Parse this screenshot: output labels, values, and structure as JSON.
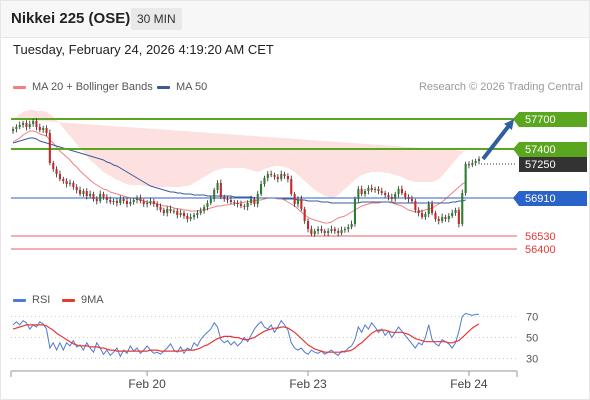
{
  "header": {
    "instrument": "Nikkei 225 (OSE)",
    "interval": "30 MIN",
    "datetime": "Tuesday, February 24, 2026 4:19:20 AM CET"
  },
  "legend": {
    "ma20_label": "MA 20 + Bollinger Bands",
    "ma50_label": "MA 50",
    "copyright": "Research © 2026 Trading Central",
    "rsi_label": "RSI",
    "rsi_ma_label": "9MA"
  },
  "colors": {
    "up": "#2e7d32",
    "down": "#c62828",
    "ma20": "#f08080",
    "ma50": "#3a5a9a",
    "bollinger_fill": "#fde0e0",
    "resistance": "#5aa61e",
    "support": "#2962c9",
    "pivot": "#333333",
    "target_low": "#e53935",
    "arrow": "#2f5f9f",
    "rsi": "#4f79d6",
    "rsi_ma": "#e53935"
  },
  "chart_data": [
    {
      "type": "candlestick",
      "ylim": [
        56100,
        57900
      ],
      "x_ticks": [
        "Feb 20",
        "Feb 23",
        "Feb 24"
      ],
      "levels": [
        {
          "value": 57700,
          "label": "57700",
          "kind": "resistance"
        },
        {
          "value": 57400,
          "label": "57400",
          "kind": "resistance"
        },
        {
          "value": 57250,
          "label": "57250",
          "kind": "pivot"
        },
        {
          "value": 56910,
          "label": "56910",
          "kind": "support"
        },
        {
          "value": 56530,
          "label": "56530",
          "kind": "target"
        },
        {
          "value": 56400,
          "label": "56400",
          "kind": "target"
        }
      ],
      "close": [
        57600,
        57620,
        57640,
        57660,
        57620,
        57650,
        57680,
        57620,
        57590,
        57610,
        57560,
        57260,
        57200,
        57150,
        57100,
        57080,
        57050,
        57060,
        57020,
        56990,
        56950,
        56980,
        56930,
        56950,
        56900,
        56880,
        56950,
        56920,
        56890,
        56870,
        56880,
        56860,
        56900,
        56880,
        56850,
        56870,
        56890,
        56910,
        56880,
        56850,
        56860,
        56880,
        56850,
        56820,
        56790,
        56760,
        56800,
        56780,
        56780,
        56740,
        56760,
        56730,
        56700,
        56720,
        56740,
        56760,
        56780,
        56820,
        56860,
        56900,
        56990,
        57060,
        56920,
        56900,
        56890,
        56870,
        56860,
        56850,
        56830,
        56820,
        56860,
        56900,
        56850,
        56950,
        57050,
        57110,
        57150,
        57140,
        57120,
        57100,
        57150,
        57130,
        57100,
        56950,
        56850,
        56900,
        56800,
        56680,
        56600,
        56550,
        56580,
        56600,
        56580,
        56560,
        56580,
        56600,
        56580,
        56560,
        56590,
        56600,
        56620,
        56650,
        56900,
        57000,
        56950,
        56980,
        57010,
        56990,
        57000,
        56980,
        56960,
        56940,
        56920,
        56900,
        56950,
        57000,
        56960,
        56920,
        56900,
        56880,
        56790,
        56760,
        56720,
        56750,
        56850,
        56760,
        56700,
        56680,
        56720,
        56700,
        56730,
        56760,
        56790,
        56650,
        56960,
        57250,
        57240,
        57260,
        57280,
        57300
      ],
      "ma20": [
        57470,
        57490,
        57510,
        57540,
        57560,
        57580,
        57580,
        57570,
        57550,
        57540,
        57530,
        57490,
        57460,
        57420,
        57380,
        57350,
        57320,
        57290,
        57250,
        57220,
        57180,
        57150,
        57120,
        57090,
        57060,
        57040,
        57020,
        57000,
        56990,
        56970,
        56960,
        56950,
        56940,
        56930,
        56920,
        56910,
        56910,
        56900,
        56890,
        56880,
        56870,
        56860,
        56860,
        56850,
        56840,
        56830,
        56830,
        56820,
        56810,
        56800,
        56800,
        56790,
        56790,
        56780,
        56780,
        56780,
        56790,
        56790,
        56800,
        56810,
        56820,
        56830,
        56830,
        56840,
        56840,
        56850,
        56850,
        56860,
        56860,
        56870,
        56870,
        56880,
        56880,
        56890,
        56890,
        56900,
        56910,
        56910,
        56910,
        56900,
        56900,
        56890,
        56870,
        56850,
        56830,
        56800,
        56770,
        56740,
        56720,
        56700,
        56690,
        56680,
        56670,
        56660,
        56660,
        56670,
        56690,
        56710,
        56720,
        56730,
        56750,
        56770,
        56790,
        56810,
        56830,
        56840,
        56850,
        56860,
        56860,
        56860,
        56870,
        56870,
        56870,
        56860,
        56850,
        56840,
        56830,
        56810,
        56790,
        56780,
        56770,
        56770,
        56780,
        56790,
        56800,
        56810,
        56830,
        56850,
        56870,
        56900,
        56930,
        56960,
        56990,
        57020,
        57050,
        57070
      ],
      "ma50": [
        57460,
        57470,
        57480,
        57490,
        57500,
        57510,
        57510,
        57500,
        57480,
        57470,
        57460,
        57450,
        57440,
        57430,
        57420,
        57410,
        57400,
        57390,
        57380,
        57370,
        57360,
        57350,
        57340,
        57330,
        57320,
        57310,
        57300,
        57290,
        57270,
        57260,
        57240,
        57230,
        57210,
        57190,
        57170,
        57150,
        57130,
        57110,
        57090,
        57070,
        57050,
        57030,
        57020,
        57010,
        57000,
        56990,
        56980,
        56970,
        56970,
        56960,
        56960,
        56950,
        56950,
        56950,
        56940,
        56940,
        56940,
        56940,
        56930,
        56930,
        56930,
        56930,
        56930,
        56930,
        56930,
        56930,
        56920,
        56920,
        56920,
        56920,
        56920,
        56920,
        56910,
        56910,
        56910,
        56910,
        56910,
        56910,
        56910,
        56910,
        56910,
        56900,
        56900,
        56900,
        56900,
        56890,
        56890,
        56890,
        56880,
        56880,
        56880,
        56880,
        56870,
        56870,
        56870,
        56860,
        56860,
        56860,
        56860,
        56860,
        56860,
        56860,
        56860,
        56860,
        56870,
        56870,
        56870,
        56870,
        56870,
        56870,
        56870,
        56870,
        56870,
        56870,
        56860,
        56860,
        56860,
        56860,
        56860,
        56860,
        56860,
        56860,
        56860,
        56860,
        56860,
        56860,
        56860,
        56860,
        56860,
        56860,
        56860,
        56870,
        56870,
        56880,
        56880,
        56890
      ],
      "bb_upper": [
        57700,
        57720,
        57750,
        57770,
        57780,
        57790,
        57790,
        57780,
        57780,
        57780,
        57770,
        57750,
        57720,
        57690,
        57650,
        57610,
        57570,
        57530,
        57490,
        57450,
        57410,
        57370,
        57330,
        57290,
        57260,
        57230,
        57200,
        57170,
        57150,
        57130,
        57110,
        57090,
        57080,
        57060,
        57050,
        57040,
        57040,
        57040,
        57040,
        57030,
        57030,
        57030,
        57030,
        57020,
        57020,
        57020,
        57020,
        57020,
        57020,
        57020,
        57020,
        57030,
        57030,
        57040,
        57060,
        57080,
        57100,
        57120,
        57140,
        57160,
        57180,
        57190,
        57200,
        57210,
        57210,
        57210,
        57210,
        57210,
        57210,
        57210,
        57200,
        57190,
        57180,
        57170,
        57180,
        57200,
        57210,
        57220,
        57230,
        57230,
        57230,
        57220,
        57210,
        57190,
        57170,
        57140,
        57110,
        57080,
        57050,
        57020,
        56990,
        56970,
        56950,
        56930,
        56920,
        56910,
        56920,
        56940,
        56970,
        57000,
        57030,
        57060,
        57090,
        57120,
        57140,
        57150,
        57160,
        57170,
        57170,
        57170,
        57170,
        57160,
        57160,
        57150,
        57140,
        57130,
        57120,
        57100,
        57090,
        57080,
        57070,
        57070,
        57070,
        57070,
        57070,
        57070,
        57080,
        57100,
        57130,
        57170,
        57210,
        57250,
        57290,
        57330,
        57360,
        57380
      ],
      "bb_lower": [
        57240,
        57260,
        57280,
        57300,
        57330,
        57360,
        57370,
        57370,
        57330,
        57310,
        57290,
        57240,
        57190,
        57140,
        57100,
        57070,
        57050,
        57030,
        57000,
        56980,
        56950,
        56920,
        56890,
        56870,
        56840,
        56830,
        56820,
        56810,
        56800,
        56790,
        56780,
        56780,
        56780,
        56780,
        56780,
        56780,
        56770,
        56760,
        56740,
        56720,
        56700,
        56690,
        56680,
        56670,
        56660,
        56650,
        56640,
        56630,
        56620,
        56610,
        56590,
        56570,
        56560,
        56540,
        56520,
        56510,
        56500,
        56490,
        56480,
        56480,
        56480,
        56490,
        56510,
        56530,
        56550,
        56570,
        56580,
        56590,
        56610,
        56620,
        56640,
        56660,
        56680,
        56700,
        56710,
        56710,
        56710,
        56710,
        56690,
        56660,
        56630,
        56600,
        56550,
        56510,
        56480,
        56460,
        56430,
        56400,
        56390,
        56380,
        56380,
        56390,
        56390,
        56390,
        56400,
        56420,
        56460,
        56480,
        56490,
        56500,
        56520,
        56540,
        56560,
        56580,
        56600,
        56610,
        56620,
        56630,
        56640,
        56650,
        56650,
        56660,
        56670,
        56660,
        56650,
        56640,
        56630,
        56610,
        56590,
        56570,
        56550,
        56530,
        56510,
        56500,
        56500,
        56500,
        56500,
        56500,
        56490,
        56480,
        56460,
        56440,
        56420,
        56410,
        56400,
        56390,
        56380,
        56370
      ]
    },
    {
      "type": "line",
      "ylim": [
        20,
        80
      ],
      "y_ticks": [
        70,
        50,
        30
      ],
      "series": [
        {
          "name": "RSI",
          "values": [
            62,
            65,
            62,
            66,
            64,
            58,
            62,
            60,
            65,
            63,
            58,
            40,
            45,
            38,
            45,
            38,
            45,
            42,
            47,
            41,
            43,
            38,
            45,
            40,
            36,
            45,
            40,
            34,
            38,
            33,
            36,
            40,
            32,
            38,
            35,
            42,
            37,
            40,
            35,
            38,
            42,
            38,
            35,
            36,
            34,
            37,
            40,
            44,
            38,
            36,
            41,
            35,
            40,
            38,
            45,
            42,
            48,
            52,
            55,
            58,
            64,
            60,
            48,
            45,
            47,
            43,
            46,
            42,
            45,
            50,
            46,
            52,
            58,
            62,
            65,
            60,
            58,
            62,
            55,
            60,
            66,
            62,
            57,
            45,
            40,
            38,
            40,
            36,
            34,
            38,
            36,
            35,
            37,
            34,
            36,
            38,
            35,
            33,
            37,
            36,
            40,
            42,
            48,
            60,
            55,
            62,
            58,
            64,
            60,
            55,
            58,
            52,
            56,
            50,
            55,
            60,
            56,
            52,
            48,
            44,
            40,
            45,
            43,
            50,
            62,
            48,
            44,
            42,
            48,
            46,
            44,
            40,
            45,
            56,
            70,
            73,
            72,
            71,
            72,
            72
          ]
        },
        {
          "name": "9MA",
          "values": [
            58,
            59,
            60,
            61,
            62,
            62,
            62,
            62,
            62,
            62,
            61,
            59,
            57,
            54,
            52,
            50,
            48,
            46,
            44,
            43,
            42,
            42,
            42,
            41,
            41,
            41,
            40,
            40,
            39,
            38,
            38,
            37,
            37,
            37,
            37,
            37,
            37,
            37,
            37,
            37,
            37,
            38,
            38,
            38,
            37,
            37,
            37,
            37,
            37,
            37,
            37,
            38,
            38,
            38,
            38,
            39,
            40,
            42,
            43,
            45,
            47,
            49,
            50,
            51,
            51,
            51,
            50,
            50,
            49,
            48,
            48,
            49,
            50,
            52,
            54,
            56,
            57,
            58,
            59,
            59,
            60,
            60,
            59,
            57,
            55,
            52,
            49,
            46,
            43,
            41,
            39,
            38,
            37,
            36,
            36,
            36,
            36,
            36,
            36,
            37,
            37,
            38,
            40,
            43,
            45,
            48,
            51,
            54,
            56,
            57,
            57,
            57,
            56,
            55,
            55,
            55,
            55,
            54,
            53,
            51,
            49,
            48,
            47,
            46,
            46,
            46,
            46,
            46,
            46,
            46,
            45,
            45,
            46,
            47,
            50,
            53,
            56,
            59,
            61,
            63
          ]
        }
      ]
    }
  ]
}
